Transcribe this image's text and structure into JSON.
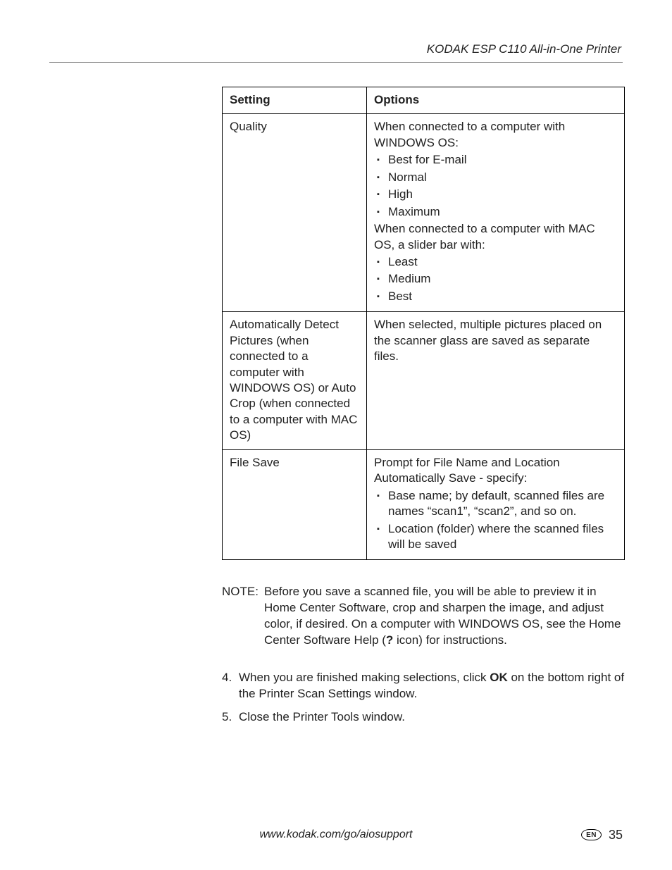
{
  "header": {
    "title": "KODAK ESP C110 All-in-One Printer"
  },
  "table": {
    "head": {
      "c1": "Setting",
      "c2": "Options"
    },
    "rows": [
      {
        "setting": "Quality",
        "intro1": "When connected to a computer with WINDOWS OS:",
        "list1": [
          "Best for E-mail",
          "Normal",
          "High",
          "Maximum"
        ],
        "intro2": "When connected to a computer with MAC OS, a slider bar with:",
        "list2": [
          "Least",
          "Medium",
          "Best"
        ]
      },
      {
        "setting": "Automatically Detect Pictures (when connected to a computer with WINDOWS OS) or Auto Crop (when connected to a computer with MAC OS)",
        "text": "When selected, multiple pictures placed on the scanner glass are saved as separate files."
      },
      {
        "setting": "File Save",
        "line1": "Prompt for File Name and Location",
        "line2": "Automatically Save - specify:",
        "list": [
          "Base name; by default, scanned files are names “scan1”, “scan2”, and so on.",
          "Location (folder) where the scanned files will be saved"
        ]
      }
    ]
  },
  "note": {
    "label": "NOTE:",
    "text_before": "Before you save a scanned file, you will be able to preview it in Home Center Software, crop and sharpen the image, and adjust color, if desired. On a computer with WINDOWS OS, see the Home Center Software Help (",
    "bold": "?",
    "text_after": " icon) for instructions."
  },
  "steps": {
    "s4_before": "When you are finished making selections, click ",
    "s4_bold": "OK",
    "s4_after": " on the bottom right of the Printer Scan Settings window.",
    "s5": "Close the Printer Tools window."
  },
  "footer": {
    "url": "www.kodak.com/go/aiosupport",
    "lang": "EN",
    "page": "35"
  }
}
